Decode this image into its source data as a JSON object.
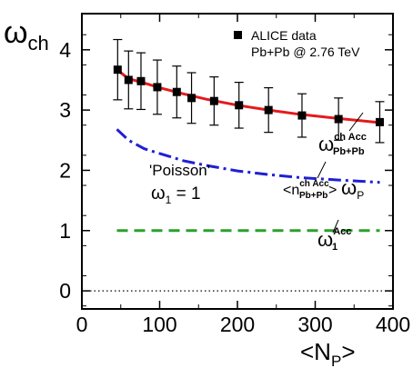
{
  "chart_data": {
    "type": "line",
    "title": "",
    "xlabel_main": "<N",
    "xlabel_sub": "P",
    "xlabel_end": ">",
    "ylabel_main": "ω",
    "ylabel_sub": "ch",
    "xlim": [
      0,
      400
    ],
    "ylim": [
      -0.3,
      4.6
    ],
    "xticks": [
      0,
      100,
      200,
      300,
      400
    ],
    "yticks": [
      0,
      1,
      2,
      3,
      4
    ],
    "grid": false,
    "legend": {
      "placement": "top-right",
      "marker_label": "ALICE data",
      "subtitle": "Pb+Pb @ 2.76 TeV"
    },
    "data_points": {
      "x": [
        46,
        60,
        76,
        97,
        122,
        141,
        170,
        202,
        240,
        283,
        330,
        383
      ],
      "y": [
        3.67,
        3.5,
        3.48,
        3.38,
        3.3,
        3.2,
        3.15,
        3.08,
        3.0,
        2.91,
        2.85,
        2.8
      ],
      "err": [
        0.5,
        0.48,
        0.47,
        0.45,
        0.43,
        0.42,
        0.4,
        0.38,
        0.37,
        0.36,
        0.35,
        0.34
      ]
    },
    "series": [
      {
        "style": "solid",
        "color": "#e41a1c",
        "x": [
          45,
          60,
          80,
          100,
          130,
          160,
          200,
          240,
          280,
          330,
          385
        ],
        "y": [
          3.67,
          3.52,
          3.45,
          3.37,
          3.27,
          3.18,
          3.08,
          3.0,
          2.93,
          2.86,
          2.79
        ]
      },
      {
        "style": "dashdot",
        "color": "#1f1fd6",
        "x": [
          45,
          60,
          80,
          100,
          130,
          160,
          200,
          240,
          280,
          330,
          383
        ],
        "y": [
          2.68,
          2.5,
          2.36,
          2.28,
          2.16,
          2.08,
          1.99,
          1.93,
          1.88,
          1.84,
          1.8
        ]
      },
      {
        "style": "dashed",
        "color": "#2aa02a",
        "x": [
          45,
          383
        ],
        "y": [
          1.0,
          1.0
        ]
      },
      {
        "style": "dotted",
        "color": "#000000",
        "x": [
          0,
          400
        ],
        "y": [
          0.0,
          0.0
        ]
      }
    ],
    "annotations": {
      "red_main": "ω",
      "red_sup": "ch Acc",
      "red_sub": "Pb+Pb",
      "blue_open": "<n",
      "blue_sup": "ch Acc",
      "blue_sub": "Pb+Pb",
      "blue_close": ">",
      "blue_omega": "ω",
      "blue_omega_sub": "P",
      "poisson": "'Poisson'",
      "omega1_main": "ω",
      "omega1_sub": "1",
      "omega1_eq": " = 1",
      "green_main": "ω",
      "green_sup": "Acc",
      "green_sub": "1"
    }
  }
}
